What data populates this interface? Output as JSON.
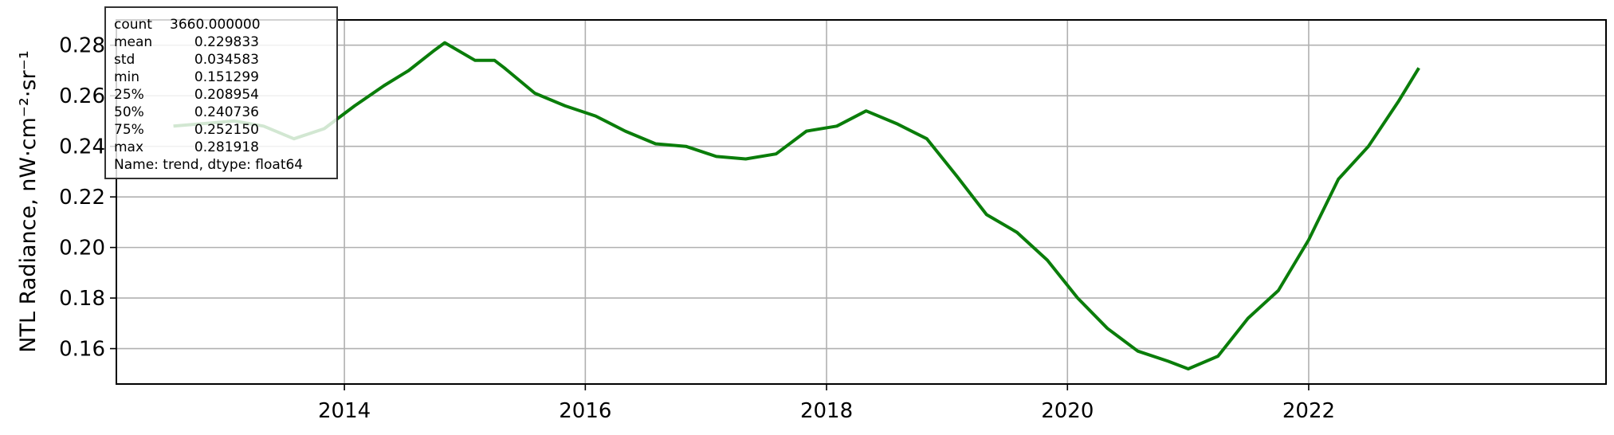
{
  "chart_data": {
    "type": "line",
    "ylabel": "NTL Radiance, nW·cm⁻²·sr⁻¹",
    "xlabel": "",
    "x_ticks": [
      "2014",
      "2016",
      "2018",
      "2020",
      "2022"
    ],
    "y_ticks": [
      "0.16",
      "0.18",
      "0.20",
      "0.22",
      "0.24",
      "0.26",
      "0.28"
    ],
    "xlim": [
      "2012-02-10",
      "2024-06-20"
    ],
    "ylim": [
      0.146,
      0.29
    ],
    "grid": true,
    "colors": {
      "line": "#0a7d0a",
      "grid": "#b0b0b0"
    },
    "series": [
      {
        "x": [
          "2012-08-01",
          "2012-11-01",
          "2013-02-01",
          "2013-05-01",
          "2013-08-01",
          "2013-11-01",
          "2014-02-01",
          "2014-05-01",
          "2014-07-15",
          "2014-10-01",
          "2014-11-01",
          "2015-02-01",
          "2015-04-01",
          "2015-05-01",
          "2015-08-01",
          "2015-11-01",
          "2016-02-01",
          "2016-05-01",
          "2016-08-01",
          "2016-11-01",
          "2017-02-01",
          "2017-05-01",
          "2017-08-01",
          "2017-11-01",
          "2018-02-01",
          "2018-05-01",
          "2018-08-01",
          "2018-11-01",
          "2019-02-01",
          "2019-05-01",
          "2019-08-01",
          "2019-11-01",
          "2020-02-01",
          "2020-05-01",
          "2020-08-01",
          "2020-11-01",
          "2021-01-01",
          "2021-04-01",
          "2021-07-01",
          "2021-10-01",
          "2022-01-01",
          "2022-04-01",
          "2022-07-01",
          "2022-10-01",
          "2022-12-01"
        ],
        "values": [
          0.248,
          0.249,
          0.25,
          0.248,
          0.243,
          0.247,
          0.256,
          0.264,
          0.27,
          0.278,
          0.281,
          0.274,
          0.274,
          0.271,
          0.261,
          0.256,
          0.252,
          0.246,
          0.241,
          0.24,
          0.236,
          0.235,
          0.237,
          0.246,
          0.248,
          0.254,
          0.249,
          0.243,
          0.228,
          0.213,
          0.206,
          0.195,
          0.18,
          0.168,
          0.159,
          0.155,
          0.152,
          0.157,
          0.172,
          0.183,
          0.203,
          0.227,
          0.24,
          0.258,
          0.271
        ]
      }
    ]
  },
  "stats": {
    "rows": [
      {
        "key": "count",
        "value": "3660.000000"
      },
      {
        "key": "mean",
        "value": "0.229833"
      },
      {
        "key": "std",
        "value": "0.034583"
      },
      {
        "key": "min",
        "value": "0.151299"
      },
      {
        "key": "25%",
        "value": "0.208954"
      },
      {
        "key": "50%",
        "value": "0.240736"
      },
      {
        "key": "75%",
        "value": "0.252150"
      },
      {
        "key": "max",
        "value": "0.281918"
      }
    ],
    "footer": "Name: trend, dtype: float64"
  }
}
